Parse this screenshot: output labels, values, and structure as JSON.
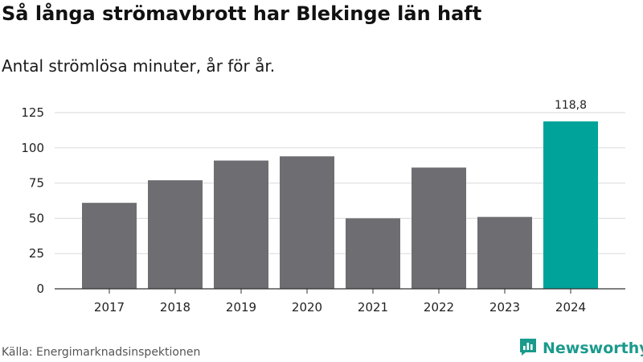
{
  "title": "Så långa strömavbrott har Blekinge län haft",
  "subtitle": "Antal strömlösa minuter, år för år.",
  "source": "Källa: Energimarknadsinspektionen",
  "brand": {
    "name": "Newsworthy",
    "icon": "newsworthy-logo-icon",
    "color": "#1a9a8c"
  },
  "colors": {
    "bar": "#6e6d72",
    "highlight": "#00a39a",
    "grid": "#d9d9d9",
    "axis": "#333333"
  },
  "chart_data": {
    "type": "bar",
    "categories": [
      "2017",
      "2018",
      "2019",
      "2020",
      "2021",
      "2022",
      "2023",
      "2024"
    ],
    "values": [
      61,
      77,
      91,
      94,
      50,
      86,
      51,
      118.8
    ],
    "highlight_index": 7,
    "data_labels": [
      "",
      "",
      "",
      "",
      "",
      "",
      "",
      "118,8"
    ],
    "yticks": [
      0,
      25,
      50,
      75,
      100,
      125
    ],
    "ylim": [
      0,
      125
    ],
    "grid": true,
    "legend": "none"
  }
}
